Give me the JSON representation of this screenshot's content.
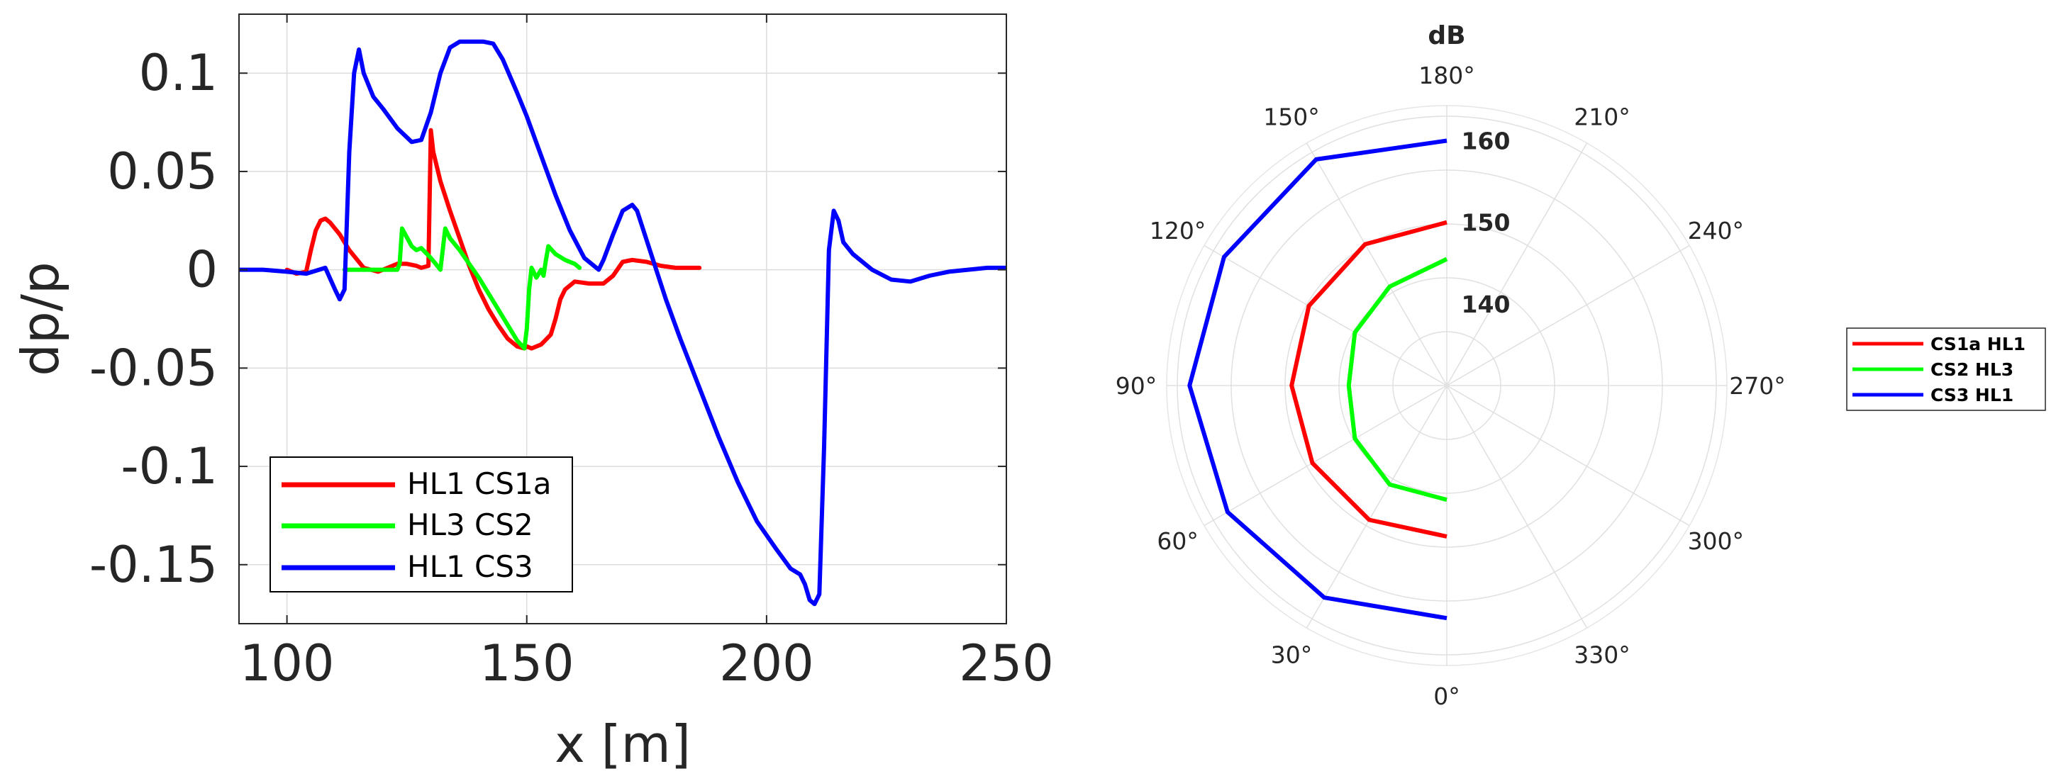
{
  "chart_data": [
    {
      "type": "line",
      "xlabel": "x [m]",
      "ylabel": "dp/p",
      "xlim": [
        90,
        250
      ],
      "ylim": [
        -0.18,
        0.13
      ],
      "xticks": [
        100,
        150,
        200,
        250
      ],
      "xtick_labels": [
        "100",
        "150",
        "200",
        "250"
      ],
      "yticks": [
        0.1,
        0.05,
        0,
        -0.05,
        -0.1,
        -0.15
      ],
      "ytick_labels": [
        "0.1",
        "0.05",
        "0",
        "-0.05",
        "-0.1",
        "-0.15"
      ],
      "grid": true,
      "legend_position": "bottom-left",
      "series": [
        {
          "name": "HL1 CS1a",
          "color": "#ff0000",
          "x": [
            100,
            102,
            104,
            105,
            106,
            107,
            108,
            109,
            111,
            113,
            116,
            119,
            121,
            123,
            125,
            127,
            128,
            129.5,
            130,
            130.5,
            132,
            134,
            136,
            138,
            140,
            142,
            144,
            146,
            148,
            149.5,
            150,
            151,
            153,
            155,
            156,
            157,
            158,
            160,
            163,
            166,
            168,
            170,
            172,
            175,
            178,
            181,
            184,
            186
          ],
          "y": [
            0,
            -0.002,
            -0.001,
            0.01,
            0.02,
            0.025,
            0.026,
            0.024,
            0.018,
            0.01,
            0.001,
            -0.001,
            0.001,
            0.003,
            0.003,
            0.002,
            0.001,
            0.002,
            0.071,
            0.06,
            0.045,
            0.03,
            0.016,
            0.002,
            -0.01,
            -0.02,
            -0.028,
            -0.035,
            -0.039,
            -0.04,
            -0.039,
            -0.04,
            -0.038,
            -0.033,
            -0.025,
            -0.015,
            -0.01,
            -0.006,
            -0.007,
            -0.007,
            -0.003,
            0.004,
            0.005,
            0.004,
            0.002,
            0.001,
            0.001,
            0.001
          ]
        },
        {
          "name": "HL3 CS2",
          "color": "#00ff00",
          "x": [
            112,
            115,
            118,
            121,
            123,
            123.5,
            124,
            126,
            127,
            128,
            130,
            131,
            132,
            133,
            134,
            136,
            138,
            140,
            142,
            144,
            146,
            148,
            149.5,
            150,
            150.5,
            151,
            152,
            153,
            153.5,
            154,
            154.5,
            156,
            158,
            160,
            161
          ],
          "y": [
            0,
            0,
            0,
            0,
            0,
            0.003,
            0.021,
            0.012,
            0.01,
            0.011,
            0.006,
            0.003,
            0,
            0.021,
            0.016,
            0.01,
            0.003,
            -0.004,
            -0.012,
            -0.02,
            -0.028,
            -0.036,
            -0.04,
            -0.03,
            -0.01,
            0.001,
            -0.004,
            0,
            -0.003,
            0.005,
            0.012,
            0.008,
            0.005,
            0.003,
            0.001
          ]
        },
        {
          "name": "HL1 CS3",
          "color": "#0000ff",
          "x": [
            90,
            95,
            100,
            104,
            108,
            110,
            111,
            112,
            113,
            114,
            115,
            116,
            118,
            120,
            123,
            126,
            128,
            130,
            132,
            134,
            136,
            138,
            141,
            143,
            145,
            148,
            150,
            153,
            156,
            159,
            162,
            165,
            166,
            168,
            170,
            172,
            173,
            175,
            177,
            179,
            182,
            186,
            190,
            194,
            198,
            202,
            205,
            207,
            208,
            209,
            210,
            211,
            212,
            213,
            214,
            215,
            216,
            218,
            222,
            226,
            230,
            234,
            238,
            242,
            246,
            250
          ],
          "y": [
            0,
            0,
            -0.001,
            -0.002,
            0.001,
            -0.01,
            -0.015,
            -0.01,
            0.06,
            0.1,
            0.112,
            0.1,
            0.088,
            0.082,
            0.072,
            0.065,
            0.066,
            0.08,
            0.1,
            0.113,
            0.116,
            0.116,
            0.116,
            0.115,
            0.107,
            0.09,
            0.078,
            0.058,
            0.038,
            0.02,
            0.006,
            0,
            0.005,
            0.018,
            0.03,
            0.033,
            0.03,
            0.015,
            0,
            -0.015,
            -0.035,
            -0.06,
            -0.085,
            -0.108,
            -0.128,
            -0.142,
            -0.152,
            -0.155,
            -0.16,
            -0.168,
            -0.17,
            -0.165,
            -0.09,
            0.01,
            0.03,
            0.025,
            0.014,
            0.008,
            0,
            -0.005,
            -0.006,
            -0.003,
            -0.001,
            0,
            0.001,
            0.001
          ]
        }
      ]
    },
    {
      "type": "polar",
      "title": "dB",
      "rlim": [
        130,
        163
      ],
      "rticks": [
        140,
        150,
        160
      ],
      "rtick_labels": [
        "140",
        "150",
        "160"
      ],
      "angle_ticks": [
        0,
        30,
        60,
        90,
        120,
        150,
        180,
        210,
        240,
        270,
        300,
        330
      ],
      "angle_labels": [
        "0°",
        "30°",
        "60°",
        "90°",
        "120°",
        "150°",
        "180°",
        "210°",
        "240°",
        "270°",
        "300°",
        "330°"
      ],
      "zero_direction": "bottom",
      "angle_direction": "clockwise",
      "legend_position": "right",
      "series": [
        {
          "name": "CS1a HL1",
          "color": "#ff0000",
          "theta": [
            0,
            30,
            60,
            90,
            120,
            150,
            180
          ],
          "r": [
            148.5,
            149,
            149,
            149,
            149.5,
            150,
            150
          ]
        },
        {
          "name": "CS2 HL3",
          "color": "#00ff00",
          "theta": [
            0,
            30,
            60,
            90,
            120,
            150,
            180
          ],
          "r": [
            144,
            144,
            143,
            142,
            143,
            144,
            145.5
          ]
        },
        {
          "name": "CS3 HL1",
          "color": "#0000ff",
          "theta": [
            0,
            30,
            60,
            90,
            120,
            150,
            180
          ],
          "r": [
            158.5,
            160,
            161,
            161.5,
            161.5,
            162,
            160
          ]
        }
      ]
    }
  ]
}
